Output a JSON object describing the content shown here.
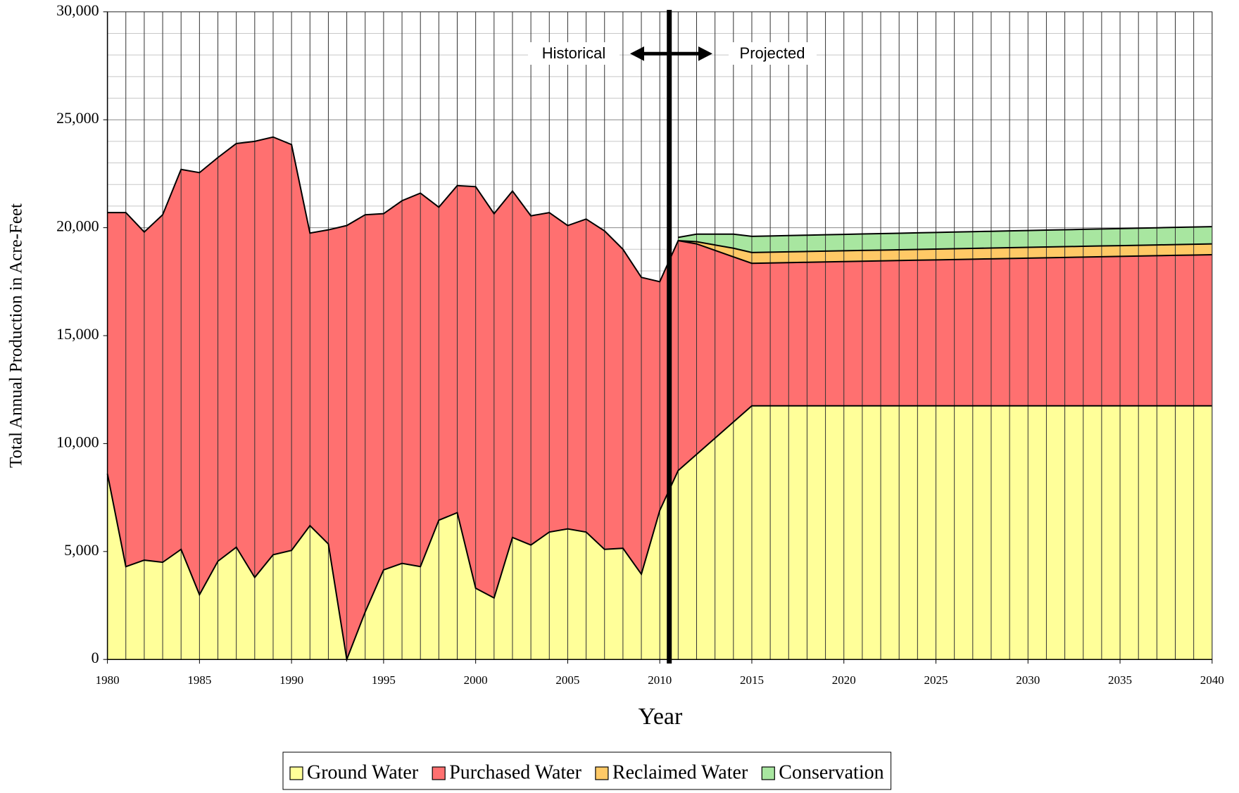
{
  "chart_data": {
    "type": "stacked_area",
    "y_label": "Total Annual Production in Acre-Feet",
    "x_label": "Year",
    "annotations": [
      "Historical",
      "Projected"
    ],
    "x": [
      1980,
      1981,
      1982,
      1983,
      1984,
      1985,
      1986,
      1987,
      1988,
      1989,
      1990,
      1991,
      1992,
      1993,
      1994,
      1995,
      1996,
      1997,
      1998,
      1999,
      2000,
      2001,
      2002,
      2003,
      2004,
      2005,
      2006,
      2007,
      2008,
      2009,
      2010,
      2011,
      2012,
      2013,
      2014,
      2015,
      2016,
      2017,
      2018,
      2019,
      2020,
      2021,
      2022,
      2023,
      2024,
      2025,
      2026,
      2027,
      2028,
      2029,
      2030,
      2031,
      2032,
      2033,
      2034,
      2035,
      2036,
      2037,
      2038,
      2039,
      2040
    ],
    "xlim": [
      1980,
      2040
    ],
    "xticks": [
      1980,
      1985,
      1990,
      1995,
      2000,
      2005,
      2010,
      2015,
      2020,
      2025,
      2030,
      2035,
      2040
    ],
    "ylim": [
      0,
      30000
    ],
    "yticks": [
      0,
      {
        "value": 5000,
        "label": "5,000"
      },
      {
        "value": 10000,
        "label": "10,000"
      },
      {
        "value": 15000,
        "label": "15,000"
      },
      {
        "value": 20000,
        "label": "20,000"
      },
      {
        "value": 25000,
        "label": "25,000"
      },
      {
        "value": 30000,
        "label": "30,000"
      }
    ],
    "grid": true,
    "series": [
      {
        "name": "Ground Water",
        "color": "#ffff99",
        "values": [
          8600,
          4300,
          4600,
          4500,
          5100,
          3000,
          4550,
          5200,
          3800,
          4850,
          5050,
          6200,
          5350,
          0,
          2200,
          4150,
          4450,
          4300,
          6450,
          6800,
          3300,
          2850,
          5650,
          5300,
          5900,
          6050,
          5900,
          5100,
          5150,
          3950,
          6900,
          8750,
          9500,
          10250,
          11000,
          11750,
          11750,
          11750,
          11750,
          11750,
          11750,
          11750,
          11750,
          11750,
          11750,
          11750,
          11750,
          11750,
          11750,
          11750,
          11750,
          11750,
          11750,
          11750,
          11750,
          11750,
          11750,
          11750,
          11750,
          11750,
          11750
        ]
      },
      {
        "name": "Purchased Water",
        "color": "#ff7070",
        "values": [
          12100,
          16400,
          15200,
          16100,
          17600,
          19550,
          18700,
          18700,
          20200,
          19350,
          18800,
          13550,
          14550,
          20100,
          18400,
          16500,
          16800,
          17300,
          14500,
          15150,
          18600,
          17800,
          16050,
          15250,
          14800,
          14050,
          14500,
          14750,
          13850,
          13750,
          10600,
          10650,
          9750,
          8700,
          7650,
          6600,
          6616,
          6632,
          6648,
          6664,
          6680,
          6696,
          6712,
          6728,
          6744,
          6760,
          6776,
          6792,
          6808,
          6824,
          6840,
          6856,
          6872,
          6888,
          6904,
          6920,
          6936,
          6952,
          6968,
          6984,
          7000
        ]
      },
      {
        "name": "Reclaimed Water",
        "color": "#ffc966",
        "values": [
          null,
          null,
          null,
          null,
          null,
          null,
          null,
          null,
          null,
          null,
          null,
          null,
          null,
          null,
          null,
          null,
          null,
          null,
          null,
          null,
          null,
          null,
          null,
          null,
          null,
          null,
          null,
          null,
          null,
          null,
          null,
          0,
          100,
          250,
          400,
          500,
          500,
          500,
          500,
          500,
          500,
          500,
          500,
          500,
          500,
          500,
          500,
          500,
          500,
          500,
          500,
          500,
          500,
          500,
          500,
          500,
          500,
          500,
          500,
          500,
          500
        ]
      },
      {
        "name": "Conservation",
        "color": "#a8e6a0",
        "values": [
          null,
          null,
          null,
          null,
          null,
          null,
          null,
          null,
          null,
          null,
          null,
          null,
          null,
          null,
          null,
          null,
          null,
          null,
          null,
          null,
          null,
          null,
          null,
          null,
          null,
          null,
          null,
          null,
          null,
          null,
          null,
          150,
          350,
          500,
          650,
          750,
          752,
          754,
          756,
          758,
          760,
          762,
          764,
          766,
          768,
          770,
          772,
          774,
          776,
          778,
          780,
          782,
          784,
          786,
          788,
          790,
          792,
          794,
          796,
          798,
          800
        ]
      }
    ]
  }
}
